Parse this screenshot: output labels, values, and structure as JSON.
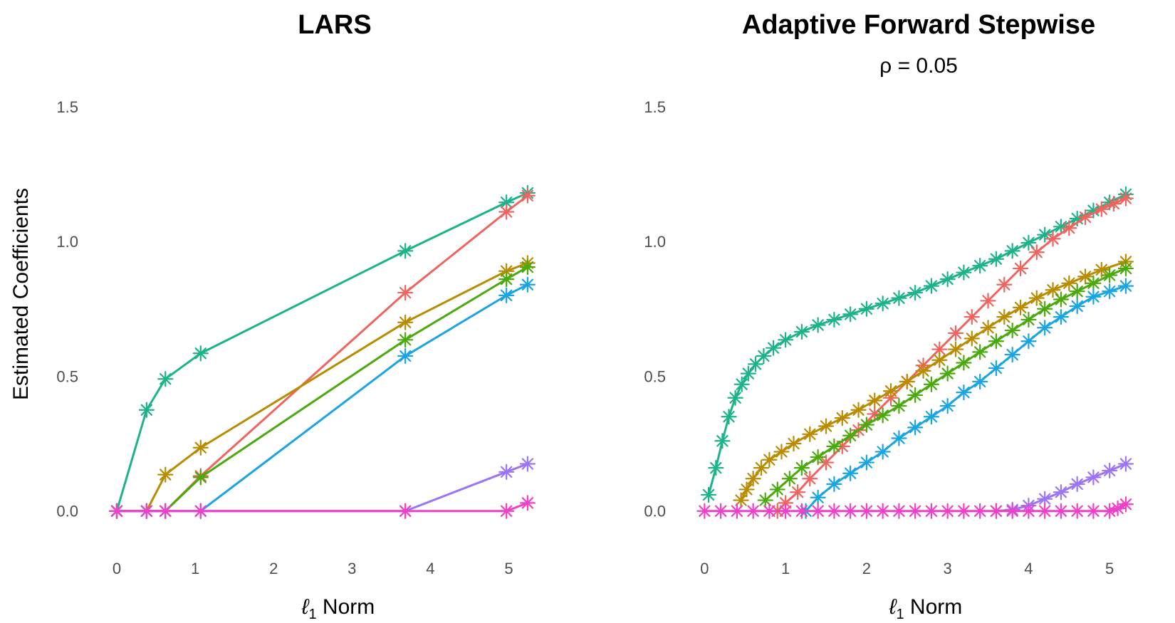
{
  "chart_data": [
    {
      "type": "line",
      "title": "LARS",
      "subtitle": "",
      "xlabel": "ℓ1 Norm",
      "xlabel_parts": {
        "main": "ℓ",
        "sub": "1",
        "rest": " Norm"
      },
      "ylabel": "Estimated Coefficients",
      "xlim": [
        -0.1,
        5.35
      ],
      "ylim": [
        -0.08,
        1.6
      ],
      "xticks": [
        "0",
        "1",
        "2",
        "3",
        "4",
        "5"
      ],
      "yticks": [
        "0.0",
        "0.5",
        "1.0",
        "1.5"
      ],
      "grid": false,
      "marker": "asterisk",
      "x": [
        0,
        0.38,
        0.62,
        1.07,
        3.68,
        4.97,
        5.24
      ],
      "series": [
        {
          "name": "teal",
          "color": "#1db38a",
          "values": [
            0,
            0.375,
            0.49,
            0.585,
            0.965,
            1.145,
            1.18
          ]
        },
        {
          "name": "red",
          "color": "#f0645f",
          "values": [
            0,
            0,
            0,
            0.13,
            0.81,
            1.11,
            1.17
          ]
        },
        {
          "name": "olive",
          "color": "#b88b00",
          "values": [
            0,
            0,
            0.135,
            0.235,
            0.7,
            0.89,
            0.92
          ]
        },
        {
          "name": "green",
          "color": "#4aa90c",
          "values": [
            0,
            0,
            0,
            0.125,
            0.635,
            0.86,
            0.905
          ]
        },
        {
          "name": "blue",
          "color": "#1aa4e2",
          "values": [
            0,
            0,
            0,
            0,
            0.575,
            0.8,
            0.84
          ]
        },
        {
          "name": "purple",
          "color": "#9b75f5",
          "values": [
            0,
            0,
            0,
            0,
            0,
            0.145,
            0.175
          ]
        },
        {
          "name": "magenta",
          "color": "#f03fc8",
          "values": [
            0,
            0,
            0,
            0,
            0,
            0,
            0.03
          ]
        }
      ]
    },
    {
      "type": "line",
      "title": "Adaptive Forward Stepwise",
      "subtitle": "ρ = 0.05",
      "xlabel": "ℓ1 Norm",
      "xlabel_parts": {
        "main": "ℓ",
        "sub": "1",
        "rest": " Norm"
      },
      "ylabel": "",
      "xlim": [
        -0.1,
        5.35
      ],
      "ylim": [
        -0.08,
        1.6
      ],
      "xticks": [
        "0",
        "1",
        "2",
        "3",
        "4",
        "5"
      ],
      "yticks": [
        "0.0",
        "0.5",
        "1.0",
        "1.5"
      ],
      "grid": false,
      "marker": "asterisk",
      "series": [
        {
          "name": "teal",
          "color": "#1db38a",
          "points": [
            [
              0.05,
              0.06
            ],
            [
              0.14,
              0.16
            ],
            [
              0.22,
              0.26
            ],
            [
              0.3,
              0.35
            ],
            [
              0.38,
              0.42
            ],
            [
              0.46,
              0.47
            ],
            [
              0.54,
              0.51
            ],
            [
              0.63,
              0.545
            ],
            [
              0.73,
              0.575
            ],
            [
              0.85,
              0.605
            ],
            [
              1.0,
              0.635
            ],
            [
              1.2,
              0.665
            ],
            [
              1.4,
              0.69
            ],
            [
              1.6,
              0.71
            ],
            [
              1.8,
              0.73
            ],
            [
              2.0,
              0.75
            ],
            [
              2.2,
              0.77
            ],
            [
              2.4,
              0.79
            ],
            [
              2.6,
              0.81
            ],
            [
              2.8,
              0.835
            ],
            [
              3.0,
              0.86
            ],
            [
              3.2,
              0.885
            ],
            [
              3.4,
              0.91
            ],
            [
              3.6,
              0.935
            ],
            [
              3.8,
              0.965
            ],
            [
              4.0,
              0.995
            ],
            [
              4.2,
              1.025
            ],
            [
              4.4,
              1.055
            ],
            [
              4.6,
              1.085
            ],
            [
              4.8,
              1.115
            ],
            [
              5.0,
              1.145
            ],
            [
              5.2,
              1.175
            ]
          ]
        },
        {
          "name": "red",
          "color": "#f0645f",
          "points": [
            [
              0.9,
              0.0
            ],
            [
              1.0,
              0.03
            ],
            [
              1.15,
              0.07
            ],
            [
              1.3,
              0.12
            ],
            [
              1.5,
              0.18
            ],
            [
              1.7,
              0.24
            ],
            [
              1.9,
              0.3
            ],
            [
              2.1,
              0.36
            ],
            [
              2.3,
              0.42
            ],
            [
              2.5,
              0.48
            ],
            [
              2.7,
              0.54
            ],
            [
              2.9,
              0.6
            ],
            [
              3.1,
              0.66
            ],
            [
              3.3,
              0.72
            ],
            [
              3.5,
              0.78
            ],
            [
              3.7,
              0.84
            ],
            [
              3.9,
              0.9
            ],
            [
              4.1,
              0.96
            ],
            [
              4.3,
              1.01
            ],
            [
              4.5,
              1.05
            ],
            [
              4.7,
              1.09
            ],
            [
              4.9,
              1.12
            ],
            [
              5.05,
              1.14
            ],
            [
              5.2,
              1.16
            ]
          ]
        },
        {
          "name": "olive",
          "color": "#b88b00",
          "points": [
            [
              0.45,
              0.04
            ],
            [
              0.52,
              0.08
            ],
            [
              0.6,
              0.12
            ],
            [
              0.7,
              0.16
            ],
            [
              0.8,
              0.19
            ],
            [
              0.95,
              0.22
            ],
            [
              1.1,
              0.25
            ],
            [
              1.3,
              0.285
            ],
            [
              1.5,
              0.315
            ],
            [
              1.7,
              0.345
            ],
            [
              1.9,
              0.375
            ],
            [
              2.1,
              0.41
            ],
            [
              2.3,
              0.445
            ],
            [
              2.5,
              0.48
            ],
            [
              2.7,
              0.52
            ],
            [
              2.9,
              0.56
            ],
            [
              3.1,
              0.6
            ],
            [
              3.3,
              0.64
            ],
            [
              3.5,
              0.68
            ],
            [
              3.7,
              0.72
            ],
            [
              3.9,
              0.755
            ],
            [
              4.1,
              0.79
            ],
            [
              4.3,
              0.82
            ],
            [
              4.5,
              0.845
            ],
            [
              4.7,
              0.87
            ],
            [
              4.9,
              0.895
            ],
            [
              5.2,
              0.925
            ]
          ]
        },
        {
          "name": "green",
          "color": "#4aa90c",
          "points": [
            [
              0.75,
              0.04
            ],
            [
              0.9,
              0.08
            ],
            [
              1.05,
              0.12
            ],
            [
              1.2,
              0.16
            ],
            [
              1.4,
              0.2
            ],
            [
              1.6,
              0.24
            ],
            [
              1.8,
              0.28
            ],
            [
              2.0,
              0.32
            ],
            [
              2.2,
              0.355
            ],
            [
              2.4,
              0.39
            ],
            [
              2.6,
              0.43
            ],
            [
              2.8,
              0.47
            ],
            [
              3.0,
              0.51
            ],
            [
              3.2,
              0.55
            ],
            [
              3.4,
              0.59
            ],
            [
              3.6,
              0.63
            ],
            [
              3.8,
              0.67
            ],
            [
              4.0,
              0.71
            ],
            [
              4.2,
              0.75
            ],
            [
              4.4,
              0.785
            ],
            [
              4.6,
              0.815
            ],
            [
              4.8,
              0.845
            ],
            [
              5.0,
              0.875
            ],
            [
              5.2,
              0.9
            ]
          ]
        },
        {
          "name": "blue",
          "color": "#1aa4e2",
          "points": [
            [
              1.25,
              0.0
            ],
            [
              1.4,
              0.05
            ],
            [
              1.6,
              0.1
            ],
            [
              1.8,
              0.14
            ],
            [
              2.0,
              0.18
            ],
            [
              2.2,
              0.22
            ],
            [
              2.4,
              0.27
            ],
            [
              2.6,
              0.31
            ],
            [
              2.8,
              0.35
            ],
            [
              3.0,
              0.39
            ],
            [
              3.2,
              0.44
            ],
            [
              3.4,
              0.48
            ],
            [
              3.6,
              0.53
            ],
            [
              3.8,
              0.58
            ],
            [
              4.0,
              0.63
            ],
            [
              4.2,
              0.68
            ],
            [
              4.4,
              0.72
            ],
            [
              4.6,
              0.76
            ],
            [
              4.8,
              0.795
            ],
            [
              5.0,
              0.815
            ],
            [
              5.2,
              0.835
            ]
          ]
        },
        {
          "name": "purple",
          "color": "#9b75f5",
          "points": [
            [
              3.6,
              0.0
            ],
            [
              3.8,
              0.005
            ],
            [
              4.0,
              0.02
            ],
            [
              4.2,
              0.045
            ],
            [
              4.4,
              0.07
            ],
            [
              4.6,
              0.1
            ],
            [
              4.8,
              0.125
            ],
            [
              5.0,
              0.15
            ],
            [
              5.2,
              0.175
            ]
          ]
        },
        {
          "name": "magenta",
          "color": "#f03fc8",
          "points": [
            [
              0.0,
              0.0
            ],
            [
              0.2,
              0.0
            ],
            [
              0.4,
              0.0
            ],
            [
              0.6,
              0.0
            ],
            [
              0.8,
              0.0
            ],
            [
              1.0,
              0.0
            ],
            [
              1.2,
              0.0
            ],
            [
              1.4,
              0.0
            ],
            [
              1.6,
              0.0
            ],
            [
              1.8,
              0.0
            ],
            [
              2.0,
              0.0
            ],
            [
              2.2,
              0.0
            ],
            [
              2.4,
              0.0
            ],
            [
              2.6,
              0.0
            ],
            [
              2.8,
              0.0
            ],
            [
              3.0,
              0.0
            ],
            [
              3.2,
              0.0
            ],
            [
              3.4,
              0.0
            ],
            [
              3.6,
              0.0
            ],
            [
              3.8,
              0.0
            ],
            [
              4.0,
              0.0
            ],
            [
              4.2,
              0.0
            ],
            [
              4.4,
              0.0
            ],
            [
              4.6,
              0.0
            ],
            [
              4.8,
              0.0
            ],
            [
              5.0,
              0.0
            ],
            [
              5.1,
              0.01
            ],
            [
              5.2,
              0.025
            ]
          ]
        }
      ]
    }
  ]
}
